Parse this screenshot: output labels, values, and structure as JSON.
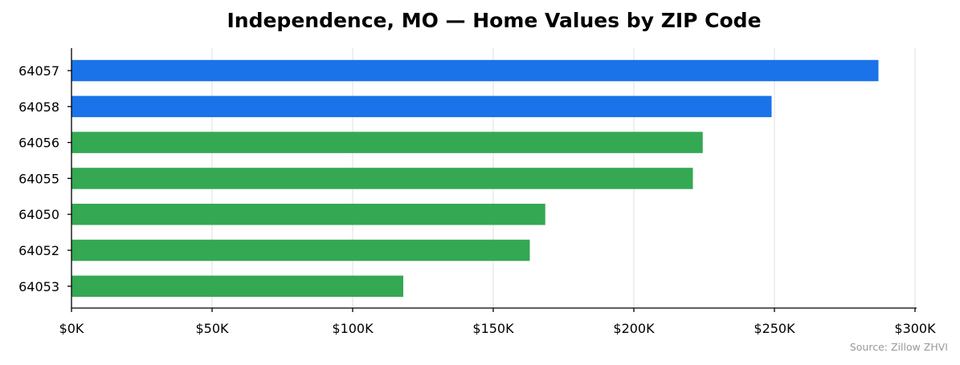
{
  "chart_data": {
    "type": "bar",
    "orientation": "horizontal",
    "title": "Independence, MO — Home Values by ZIP Code",
    "categories": [
      "64057",
      "64058",
      "64056",
      "64055",
      "64050",
      "64052",
      "64053"
    ],
    "values": [
      287000,
      249000,
      224500,
      221000,
      168500,
      163000,
      118000
    ],
    "colors": [
      "#1a73e8",
      "#1a73e8",
      "#34a853",
      "#34a853",
      "#34a853",
      "#34a853",
      "#34a853"
    ],
    "xlim": [
      0,
      300000
    ],
    "xticks": [
      0,
      50000,
      100000,
      150000,
      200000,
      250000,
      300000
    ],
    "xtick_labels": [
      "$0K",
      "$50K",
      "$100K",
      "$150K",
      "$200K",
      "$250K",
      "$300K"
    ],
    "grid": "vertical",
    "source": "Source: Zillow ZHVI"
  }
}
